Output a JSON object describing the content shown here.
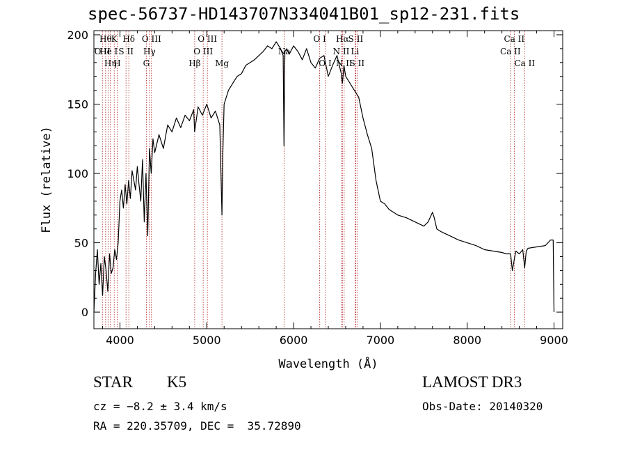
{
  "title": "spec-56737-HD143707N334041B01_sp12-231.fits",
  "info": {
    "object_type": "STAR",
    "subclass": "K5",
    "survey": "LAMOST DR3",
    "cz": "cz = −8.2 ± 3.4 km/s",
    "obs_date": "Obs-Date: 20140320",
    "radec": "RA = 220.35709, DEC =  35.72890"
  },
  "chart_data": {
    "type": "line",
    "title": "spec-56737-HD143707N334041B01_sp12-231.fits",
    "xlabel": "Wavelength (Å)",
    "ylabel": "Flux (relative)",
    "xlim": [
      3700,
      9100
    ],
    "ylim": [
      -12,
      203
    ],
    "x_ticks": [
      4000,
      5000,
      6000,
      7000,
      8000,
      9000
    ],
    "y_ticks": [
      0,
      50,
      100,
      150,
      200
    ],
    "series": [
      {
        "name": "flux",
        "x": [
          3700,
          3720,
          3740,
          3760,
          3780,
          3800,
          3820,
          3840,
          3860,
          3880,
          3900,
          3920,
          3940,
          3960,
          3980,
          4000,
          4020,
          4040,
          4060,
          4080,
          4100,
          4120,
          4140,
          4160,
          4180,
          4200,
          4220,
          4240,
          4260,
          4280,
          4300,
          4320,
          4340,
          4360,
          4380,
          4400,
          4450,
          4500,
          4550,
          4600,
          4650,
          4700,
          4750,
          4800,
          4850,
          4860,
          4900,
          4950,
          5000,
          5050,
          5100,
          5150,
          5175,
          5185,
          5200,
          5250,
          5300,
          5350,
          5400,
          5450,
          5500,
          5550,
          5600,
          5650,
          5700,
          5750,
          5800,
          5850,
          5880,
          5890,
          5895,
          5900,
          5920,
          5950,
          6000,
          6050,
          6100,
          6150,
          6200,
          6250,
          6300,
          6350,
          6400,
          6450,
          6500,
          6550,
          6563,
          6580,
          6600,
          6650,
          6700,
          6750,
          6800,
          6850,
          6900,
          6950,
          7000,
          7050,
          7100,
          7150,
          7200,
          7300,
          7400,
          7500,
          7550,
          7600,
          7620,
          7650,
          7700,
          7800,
          7900,
          8000,
          8100,
          8200,
          8300,
          8400,
          8450,
          8500,
          8520,
          8542,
          8560,
          8600,
          8640,
          8662,
          8680,
          8700,
          8800,
          8900,
          8960,
          8990,
          9000
        ],
        "values": [
          0,
          28,
          45,
          20,
          35,
          12,
          40,
          30,
          15,
          42,
          28,
          32,
          45,
          38,
          50,
          80,
          88,
          75,
          92,
          78,
          95,
          82,
          102,
          95,
          88,
          105,
          92,
          80,
          110,
          65,
          100,
          55,
          118,
          100,
          125,
          115,
          128,
          118,
          135,
          130,
          140,
          133,
          142,
          138,
          146,
          130,
          148,
          142,
          150,
          140,
          145,
          135,
          70,
          115,
          150,
          160,
          165,
          170,
          172,
          178,
          180,
          182,
          185,
          188,
          192,
          190,
          195,
          190,
          185,
          120,
          160,
          188,
          190,
          186,
          192,
          188,
          182,
          190,
          180,
          176,
          183,
          185,
          170,
          178,
          185,
          172,
          165,
          178,
          170,
          165,
          160,
          155,
          140,
          128,
          118,
          95,
          80,
          78,
          74,
          72,
          70,
          68,
          65,
          62,
          65,
          72,
          68,
          60,
          58,
          55,
          52,
          50,
          48,
          45,
          44,
          43,
          42,
          42,
          30,
          38,
          44,
          42,
          45,
          32,
          44,
          46,
          47,
          48,
          52,
          52,
          0
        ]
      }
    ],
    "line_labels": [
      {
        "x": 3798,
        "label": "O II",
        "row": 2
      },
      {
        "x": 3835,
        "label": "Hθ",
        "row": 1
      },
      {
        "x": 3870,
        "label": "He I",
        "row": 2
      },
      {
        "x": 3890,
        "label": "Hη",
        "row": 3
      },
      {
        "x": 3934,
        "label": "K",
        "row": 1
      },
      {
        "x": 3968,
        "label": "H",
        "row": 3
      },
      {
        "x": 4070,
        "label": "S II",
        "row": 2
      },
      {
        "x": 4102,
        "label": "Hδ",
        "row": 1
      },
      {
        "x": 4304,
        "label": "G",
        "row": 3
      },
      {
        "x": 4340,
        "label": "Hγ",
        "row": 2
      },
      {
        "x": 4363,
        "label": "O III",
        "row": 1
      },
      {
        "x": 4861,
        "label": "Hβ",
        "row": 3
      },
      {
        "x": 4959,
        "label": "O III",
        "row": 2
      },
      {
        "x": 5007,
        "label": "O III",
        "row": 1
      },
      {
        "x": 5175,
        "label": "Mg",
        "row": 3
      },
      {
        "x": 5893,
        "label": "Na",
        "row": 2
      },
      {
        "x": 6300,
        "label": "O I",
        "row": 1
      },
      {
        "x": 6364,
        "label": "O I",
        "row": 3
      },
      {
        "x": 6548,
        "label": "N II",
        "row": 2
      },
      {
        "x": 6563,
        "label": "Hα",
        "row": 1
      },
      {
        "x": 6583,
        "label": "N II",
        "row": 3
      },
      {
        "x": 6708,
        "label": "Li",
        "row": 2
      },
      {
        "x": 6716,
        "label": "S II",
        "row": 1
      },
      {
        "x": 6731,
        "label": "S II",
        "row": 3
      },
      {
        "x": 8498,
        "label": "Ca II",
        "row": 2
      },
      {
        "x": 8542,
        "label": "Ca II",
        "row": 1
      },
      {
        "x": 8662,
        "label": "Ca II",
        "row": 3
      }
    ]
  }
}
